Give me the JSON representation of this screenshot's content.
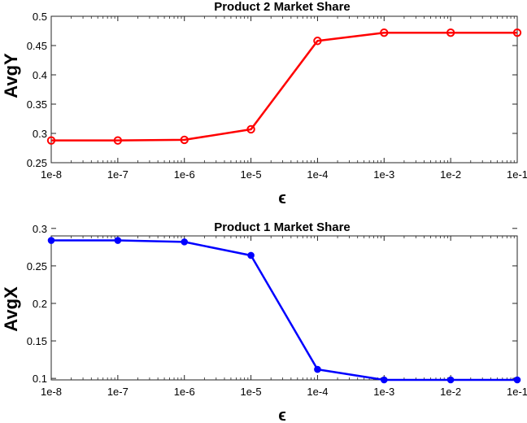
{
  "chart_data": [
    {
      "type": "line",
      "title": "Product 2 Market Share",
      "xlabel": "ϵ",
      "ylabel": "AvgY",
      "xscale": "log",
      "x": [
        1e-08,
        1e-07,
        1e-06,
        1e-05,
        0.0001,
        0.001,
        0.01,
        0.1
      ],
      "xticklabels": [
        "1e-8",
        "1e-7",
        "1e-6",
        "1e-5",
        "1e-4",
        "1e-3",
        "1e-2",
        "1e-1"
      ],
      "ylim": [
        0.25,
        0.5
      ],
      "yticks": [
        0.25,
        0.3,
        0.35,
        0.4,
        0.45,
        0.5
      ],
      "yticklabels": [
        "0.25",
        "0.3",
        "0.35",
        "0.4",
        "0.45",
        "0.5"
      ],
      "grid": false,
      "series": [
        {
          "values": [
            0.288,
            0.288,
            0.289,
            0.307,
            0.458,
            0.472,
            0.472,
            0.472
          ],
          "color": "#ff0000",
          "marker": "open-circle"
        }
      ]
    },
    {
      "type": "line",
      "title": "Product 1 Market Share",
      "xlabel": "ϵ",
      "ylabel": "AvgX",
      "xscale": "log",
      "x": [
        1e-08,
        1e-07,
        1e-06,
        1e-05,
        0.0001,
        0.001,
        0.01,
        0.1
      ],
      "xticklabels": [
        "1e-8",
        "1e-7",
        "1e-6",
        "1e-5",
        "1e-4",
        "1e-3",
        "1e-2",
        "1e-1"
      ],
      "ylim": [
        0.098,
        0.29
      ],
      "yticks": [
        0.1,
        0.15,
        0.2,
        0.25,
        0.3
      ],
      "yticklabels": [
        "0.1",
        "0.15",
        "0.2",
        "0.25",
        "0.3"
      ],
      "grid": false,
      "series": [
        {
          "values": [
            0.284,
            0.284,
            0.282,
            0.264,
            0.112,
            0.098,
            0.098,
            0.098
          ],
          "color": "#0000ff",
          "marker": "filled-circle"
        }
      ]
    }
  ]
}
